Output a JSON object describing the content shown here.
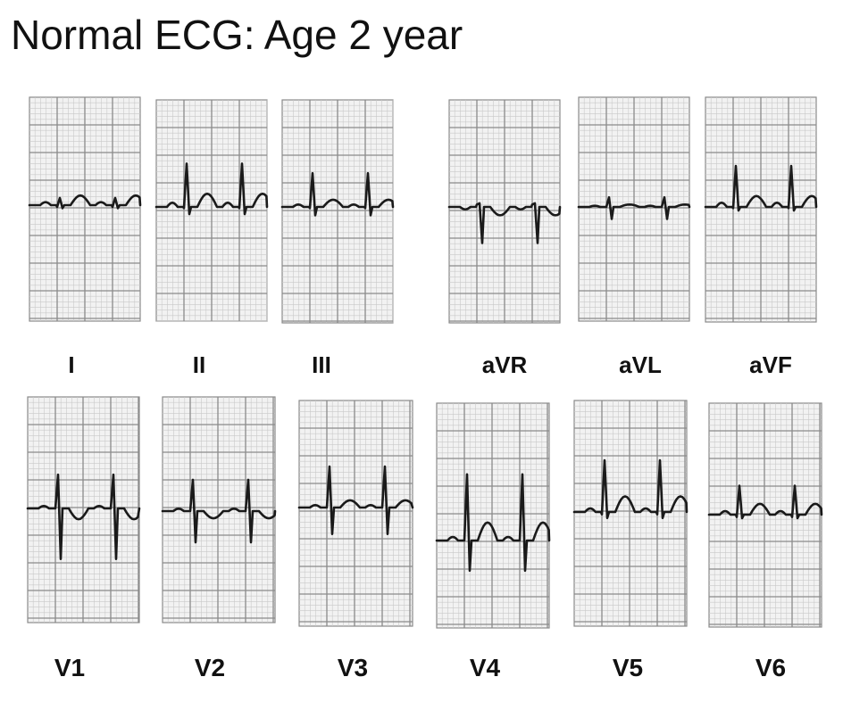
{
  "title": "Normal ECG: Age 2 year",
  "leads": [
    {
      "id": "I",
      "label": "I",
      "pattern": [
        [
          "p",
          0.25
        ],
        [
          "q",
          -0.15
        ],
        [
          "r",
          0.6
        ],
        [
          "s",
          -0.25
        ],
        [
          "t",
          0.8
        ]
      ],
      "beats": 2
    },
    {
      "id": "II",
      "label": "II",
      "pattern": [
        [
          "p",
          0.35
        ],
        [
          "q",
          -0.1
        ],
        [
          "r",
          3.6
        ],
        [
          "s",
          -0.6
        ],
        [
          "t",
          1.1
        ]
      ],
      "beats": 2
    },
    {
      "id": "III",
      "label": "III",
      "pattern": [
        [
          "p",
          0.2
        ],
        [
          "q",
          -0.1
        ],
        [
          "r",
          2.8
        ],
        [
          "s",
          -0.7
        ],
        [
          "t",
          0.6
        ]
      ],
      "beats": 2
    },
    {
      "id": "aVR",
      "label": "aVR",
      "pattern": [
        [
          "p",
          -0.2
        ],
        [
          "q",
          0.2
        ],
        [
          "r",
          0.3
        ],
        [
          "s",
          -3.0
        ],
        [
          "t",
          -0.7
        ]
      ],
      "beats": 2
    },
    {
      "id": "aVL",
      "label": "aVL",
      "pattern": [
        [
          "p",
          0.1
        ],
        [
          "q",
          0.0
        ],
        [
          "r",
          0.8
        ],
        [
          "s",
          -1.0
        ],
        [
          "t",
          0.2
        ]
      ],
      "beats": 2
    },
    {
      "id": "aVF",
      "label": "aVF",
      "pattern": [
        [
          "p",
          0.35
        ],
        [
          "q",
          -0.1
        ],
        [
          "r",
          3.4
        ],
        [
          "s",
          -0.3
        ],
        [
          "t",
          0.9
        ]
      ],
      "beats": 2
    },
    {
      "id": "V1",
      "label": "V1",
      "pattern": [
        [
          "p",
          0.2
        ],
        [
          "q",
          0.0
        ],
        [
          "r",
          2.8
        ],
        [
          "s",
          -4.2
        ],
        [
          "t",
          -0.9
        ]
      ],
      "beats": 2
    },
    {
      "id": "V2",
      "label": "V2",
      "pattern": [
        [
          "p",
          0.2
        ],
        [
          "q",
          0.0
        ],
        [
          "r",
          2.6
        ],
        [
          "s",
          -2.6
        ],
        [
          "t",
          -0.6
        ]
      ],
      "beats": 2
    },
    {
      "id": "V3",
      "label": "V3",
      "pattern": [
        [
          "p",
          0.2
        ],
        [
          "q",
          0.0
        ],
        [
          "r",
          3.4
        ],
        [
          "s",
          -2.2
        ],
        [
          "t",
          0.6
        ]
      ],
      "beats": 2
    },
    {
      "id": "V4",
      "label": "V4",
      "pattern": [
        [
          "p",
          0.3
        ],
        [
          "q",
          0.0
        ],
        [
          "r",
          5.5
        ],
        [
          "s",
          -2.5
        ],
        [
          "t",
          1.5
        ]
      ],
      "beats": 2
    },
    {
      "id": "V5",
      "label": "V5",
      "pattern": [
        [
          "p",
          0.3
        ],
        [
          "q",
          -0.2
        ],
        [
          "r",
          4.3
        ],
        [
          "s",
          -0.5
        ],
        [
          "t",
          1.3
        ]
      ],
      "beats": 2
    },
    {
      "id": "V6",
      "label": "V6",
      "pattern": [
        [
          "p",
          0.3
        ],
        [
          "q",
          -0.2
        ],
        [
          "r",
          2.4
        ],
        [
          "s",
          -0.3
        ],
        [
          "t",
          0.9
        ]
      ],
      "beats": 2
    }
  ],
  "colors": {
    "grid_fine": "#c9c9c9",
    "grid_major": "#8a8a8a",
    "paper": "#f2f2f2",
    "trace": "#1a1a1a"
  }
}
